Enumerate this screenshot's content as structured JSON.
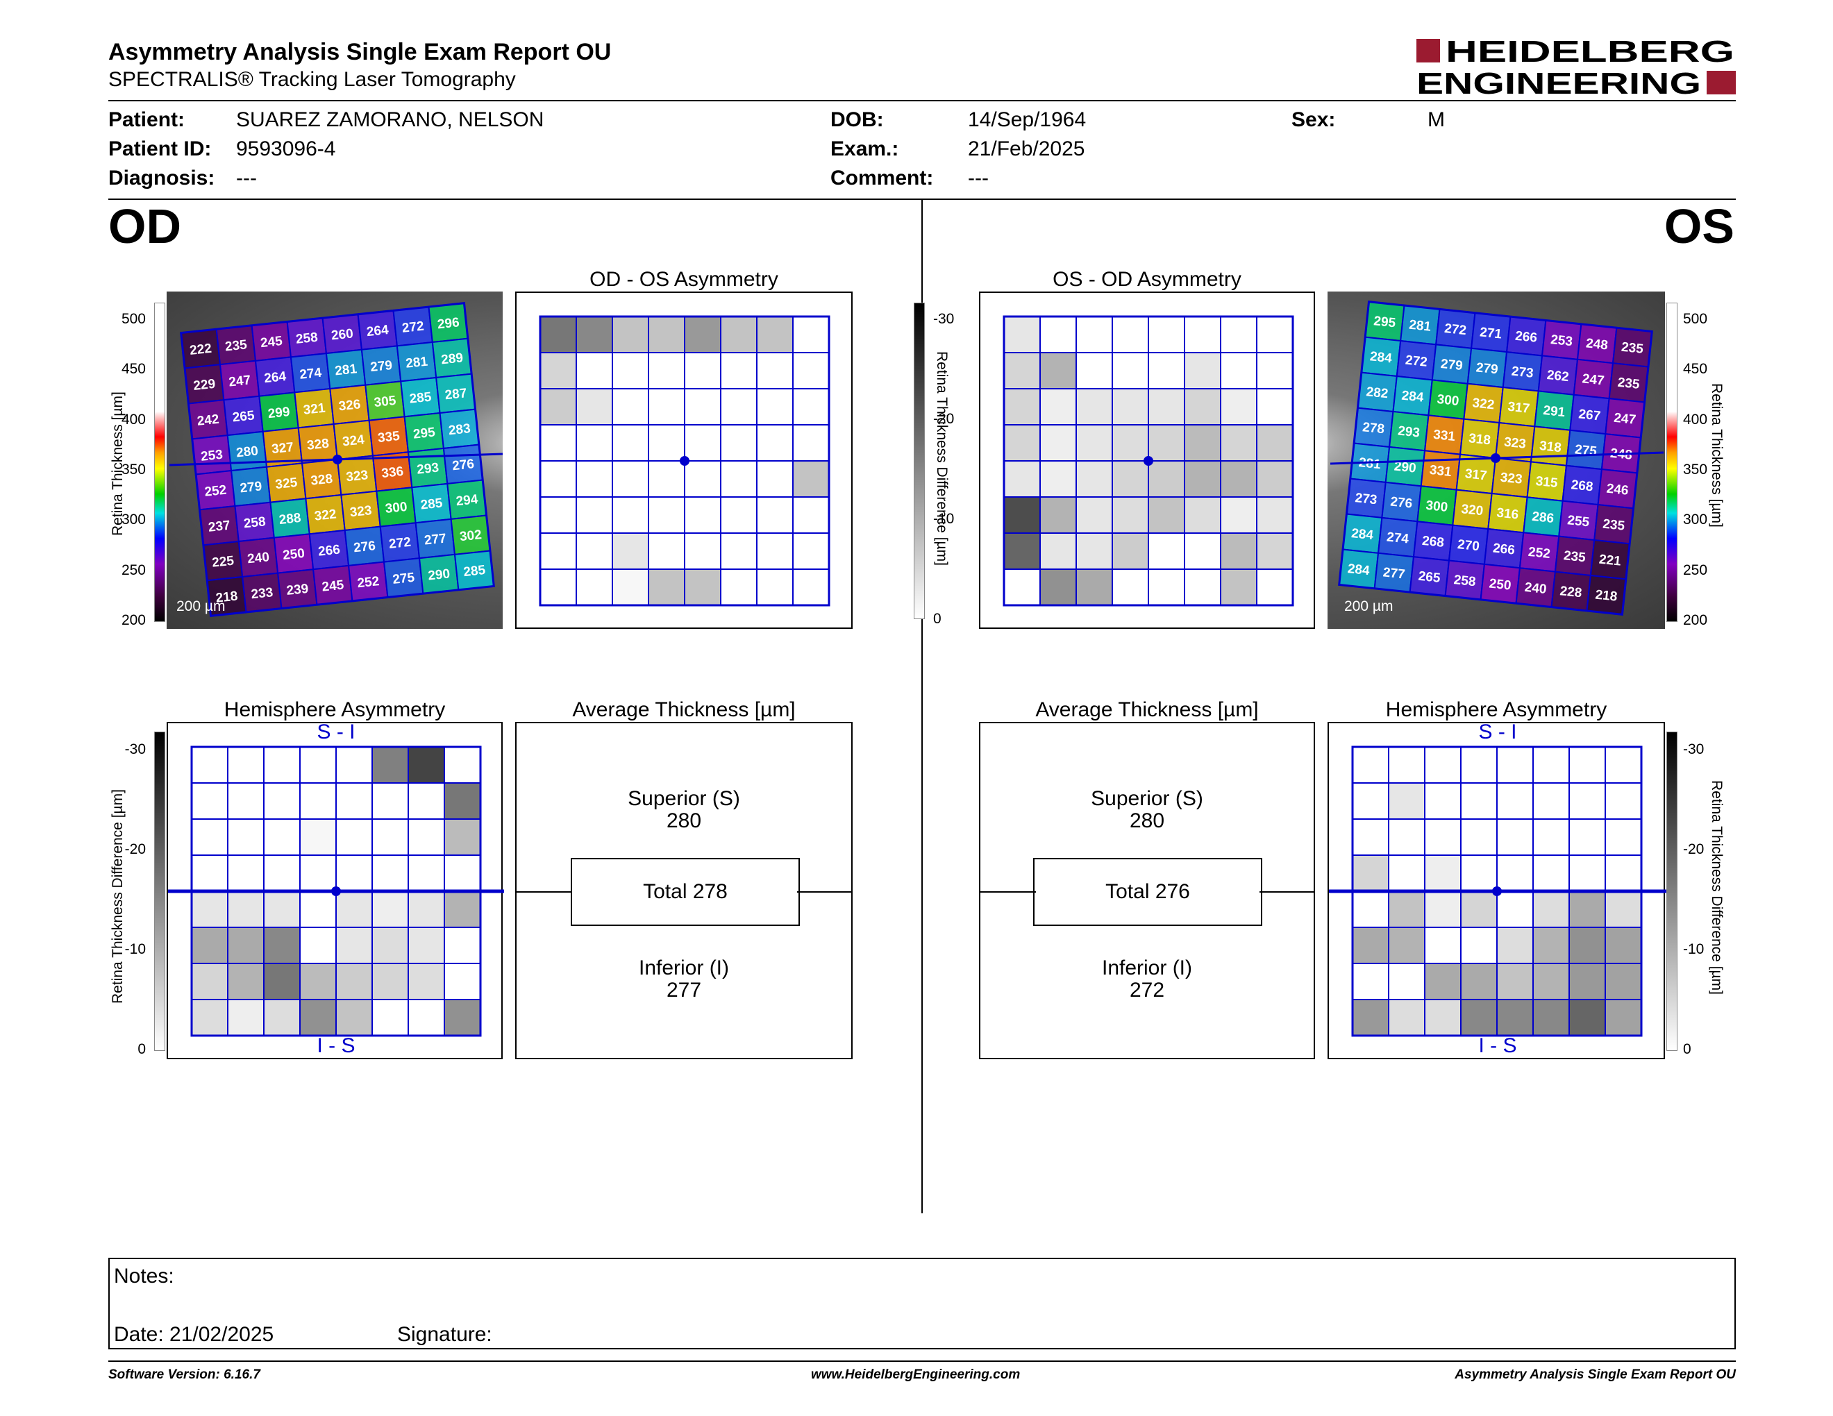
{
  "header": {
    "title": "Asymmetry Analysis Single Exam Report OU",
    "subtitle": "SPECTRALIS® Tracking Laser Tomography",
    "logo_line1": "HEIDELBERG",
    "logo_line2": "ENGINEERING"
  },
  "patient": {
    "patient_label": "Patient:",
    "patient_value": "SUAREZ ZAMORANO, NELSON",
    "id_label": "Patient ID:",
    "id_value": "9593096-4",
    "diagnosis_label": "Diagnosis:",
    "diagnosis_value": "---",
    "dob_label": "DOB:",
    "dob_value": "14/Sep/1964",
    "exam_label": "Exam.:",
    "exam_value": "21/Feb/2025",
    "comment_label": "Comment:",
    "comment_value": "---",
    "sex_label": "Sex:",
    "sex_value": "M"
  },
  "od": {
    "eye_label": "OD",
    "thickness_grid": [
      [
        222,
        235,
        245,
        258,
        260,
        264,
        272,
        296
      ],
      [
        229,
        247,
        264,
        274,
        281,
        279,
        281,
        289
      ],
      [
        242,
        265,
        299,
        321,
        326,
        305,
        285,
        287
      ],
      [
        253,
        280,
        327,
        328,
        324,
        335,
        295,
        283
      ],
      [
        252,
        279,
        325,
        328,
        323,
        336,
        293,
        276
      ],
      [
        237,
        258,
        288,
        322,
        323,
        300,
        285,
        294
      ],
      [
        225,
        240,
        250,
        266,
        276,
        272,
        277,
        302
      ],
      [
        218,
        233,
        239,
        245,
        252,
        275,
        290,
        285
      ]
    ],
    "asymmetry_title": "OD - OS Asymmetry",
    "asymmetry_levels": [
      [
        16,
        14,
        7,
        7,
        12,
        7,
        7,
        0
      ],
      [
        5,
        0,
        0,
        0,
        0,
        0,
        0,
        0
      ],
      [
        6,
        3,
        0,
        0,
        0,
        0,
        0,
        0
      ],
      [
        0,
        0,
        0,
        0,
        0,
        0,
        0,
        0
      ],
      [
        0,
        0,
        0,
        0,
        0,
        0,
        0,
        7
      ],
      [
        0,
        0,
        0,
        0,
        0,
        0,
        0,
        0
      ],
      [
        0,
        0,
        3,
        0,
        0,
        0,
        0,
        0
      ],
      [
        0,
        0,
        1,
        7,
        7,
        0,
        0,
        0
      ]
    ],
    "hemisphere_title": "Hemisphere Asymmetry",
    "hemi_top_label": "S - I",
    "hemi_bottom_label": "I - S",
    "hemi_levels": [
      [
        0,
        0,
        0,
        0,
        0,
        15,
        22,
        0
      ],
      [
        0,
        0,
        0,
        0,
        0,
        0,
        0,
        16
      ],
      [
        0,
        0,
        0,
        1,
        0,
        0,
        0,
        8
      ],
      [
        0,
        0,
        0,
        0,
        0,
        0,
        0,
        0
      ],
      [
        3,
        3,
        3,
        0,
        3,
        2,
        3,
        9
      ],
      [
        10,
        10,
        14,
        0,
        3,
        4,
        3,
        0
      ],
      [
        5,
        9,
        16,
        8,
        6,
        5,
        4,
        0
      ],
      [
        4,
        2,
        4,
        13,
        7,
        0,
        0,
        13
      ]
    ],
    "average_title": "Average Thickness [µm]",
    "superior_label": "Superior (S)",
    "superior_value": "280",
    "total_label": "Total 278",
    "inferior_label": "Inferior (I)",
    "inferior_value": "277",
    "scale_bar": "200 µm"
  },
  "os": {
    "eye_label": "OS",
    "thickness_grid": [
      [
        295,
        281,
        272,
        271,
        266,
        253,
        248,
        235
      ],
      [
        284,
        272,
        279,
        279,
        273,
        262,
        247,
        235
      ],
      [
        282,
        284,
        300,
        322,
        317,
        291,
        267,
        247
      ],
      [
        278,
        293,
        331,
        318,
        323,
        318,
        275,
        248
      ],
      [
        281,
        290,
        331,
        317,
        323,
        315,
        268,
        246
      ],
      [
        273,
        276,
        300,
        320,
        316,
        286,
        255,
        235
      ],
      [
        284,
        274,
        268,
        270,
        266,
        252,
        235,
        221
      ],
      [
        284,
        277,
        265,
        258,
        250,
        240,
        228,
        218
      ]
    ],
    "asymmetry_title": "OS - OD Asymmetry",
    "asymmetry_levels": [
      [
        3,
        0,
        0,
        0,
        0,
        0,
        0,
        0
      ],
      [
        5,
        9,
        0,
        0,
        0,
        3,
        0,
        0
      ],
      [
        5,
        2,
        3,
        3,
        3,
        5,
        2,
        0
      ],
      [
        5,
        2,
        3,
        4,
        5,
        8,
        5,
        6
      ],
      [
        3,
        2,
        3,
        5,
        6,
        9,
        9,
        6
      ],
      [
        21,
        9,
        3,
        4,
        7,
        4,
        2,
        3
      ],
      [
        18,
        3,
        3,
        6,
        0,
        0,
        8,
        5
      ],
      [
        0,
        13,
        10,
        0,
        0,
        0,
        7,
        0
      ]
    ],
    "hemisphere_title": "Hemisphere Asymmetry",
    "hemi_top_label": "S - I",
    "hemi_bottom_label": "I - S",
    "hemi_levels": [
      [
        0,
        0,
        0,
        0,
        0,
        0,
        0,
        0
      ],
      [
        0,
        3,
        0,
        0,
        0,
        0,
        0,
        0
      ],
      [
        0,
        0,
        0,
        0,
        0,
        0,
        0,
        0
      ],
      [
        5,
        0,
        2,
        0,
        0,
        0,
        0,
        0
      ],
      [
        0,
        7,
        2,
        5,
        0,
        4,
        10,
        4
      ],
      [
        10,
        9,
        0,
        0,
        4,
        9,
        13,
        11
      ],
      [
        0,
        0,
        10,
        10,
        7,
        9,
        12,
        11
      ],
      [
        12,
        4,
        4,
        14,
        14,
        14,
        18,
        11
      ]
    ],
    "average_title": "Average Thickness [µm]",
    "superior_label": "Superior (S)",
    "superior_value": "280",
    "total_label": "Total 276",
    "inferior_label": "Inferior (I)",
    "inferior_value": "272",
    "scale_bar": "200 µm"
  },
  "thickness_scale": {
    "label": "Retina Thickness [µm]",
    "ticks": [
      "500",
      "450",
      "400",
      "350",
      "300",
      "250",
      "200"
    ]
  },
  "difference_scale": {
    "label": "Retina Thickness Difference [µm]",
    "ticks": [
      "-30",
      "-20",
      "-10",
      "0"
    ]
  },
  "notes": {
    "notes_label": "Notes:",
    "date_label": "Date: 21/02/2025",
    "signature_label": "Signature:"
  },
  "footer": {
    "version": "Software Version: 6.16.7",
    "website": "www.HeidelbergEngineering.com",
    "report_name": "Asymmetry Analysis Single Exam Report OU"
  },
  "colors": {
    "logo_red": "#9b1b30",
    "grid_blue": "#0000cc"
  }
}
